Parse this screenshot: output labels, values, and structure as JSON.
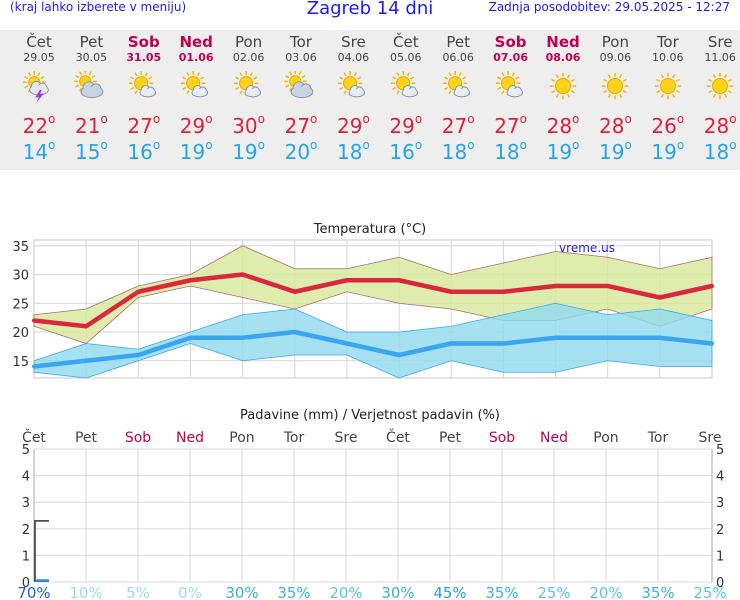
{
  "header": {
    "menu_hint": "(kraj lahko izberete v meniju)",
    "title": "Zagreb 14 dni",
    "updated": "Zadnja posodobitev: 29.05.2025 - 12:27"
  },
  "days": [
    {
      "name": "Čet",
      "date": "29.05",
      "weekend": false,
      "icon": "sun-cloud-thunder-icon",
      "max": "22",
      "min": "14"
    },
    {
      "name": "Pet",
      "date": "30.05",
      "weekend": false,
      "icon": "sun-cloud-icon",
      "max": "21",
      "min": "15"
    },
    {
      "name": "Sob",
      "date": "31.05",
      "weekend": true,
      "icon": "sun-small-cloud-icon",
      "max": "27",
      "min": "16"
    },
    {
      "name": "Ned",
      "date": "01.06",
      "weekend": true,
      "icon": "sun-small-cloud-icon",
      "max": "29",
      "min": "19"
    },
    {
      "name": "Pon",
      "date": "02.06",
      "weekend": false,
      "icon": "sun-small-cloud-icon",
      "max": "30",
      "min": "19"
    },
    {
      "name": "Tor",
      "date": "03.06",
      "weekend": false,
      "icon": "sun-cloud-icon",
      "max": "27",
      "min": "20"
    },
    {
      "name": "Sre",
      "date": "04.06",
      "weekend": false,
      "icon": "sun-small-cloud-icon",
      "max": "29",
      "min": "18"
    },
    {
      "name": "Čet",
      "date": "05.06",
      "weekend": false,
      "icon": "sun-small-cloud-icon",
      "max": "29",
      "min": "16"
    },
    {
      "name": "Pet",
      "date": "06.06",
      "weekend": false,
      "icon": "sun-small-cloud-icon",
      "max": "27",
      "min": "18"
    },
    {
      "name": "Sob",
      "date": "07.06",
      "weekend": true,
      "icon": "sun-small-cloud-icon",
      "max": "27",
      "min": "18"
    },
    {
      "name": "Ned",
      "date": "08.06",
      "weekend": true,
      "icon": "sun-icon",
      "max": "28",
      "min": "19"
    },
    {
      "name": "Pon",
      "date": "09.06",
      "weekend": false,
      "icon": "sun-icon",
      "max": "28",
      "min": "19"
    },
    {
      "name": "Tor",
      "date": "10.06",
      "weekend": false,
      "icon": "sun-icon",
      "max": "26",
      "min": "19"
    },
    {
      "name": "Sre",
      "date": "11.06",
      "weekend": false,
      "icon": "sun-icon",
      "max": "28",
      "min": "18"
    }
  ],
  "degree_symbol": "o",
  "chart_data": [
    {
      "type": "line",
      "title": "Temperatura (°C)",
      "watermark": "vreme.us",
      "ylim": [
        12,
        36
      ],
      "yticks": [
        15,
        20,
        25,
        30,
        35
      ],
      "grid": true,
      "series": [
        {
          "name": "max",
          "color": "#d9283c",
          "values": [
            22,
            21,
            27,
            29,
            30,
            27,
            29,
            29,
            27,
            27,
            28,
            28,
            26,
            28
          ]
        },
        {
          "name": "min",
          "color": "#3aa6f0",
          "values": [
            14,
            15,
            16,
            19,
            19,
            20,
            18,
            16,
            18,
            18,
            19,
            19,
            19,
            18
          ]
        }
      ],
      "max_band_high": [
        23,
        24,
        28,
        30,
        35,
        31,
        31,
        33,
        30,
        32,
        34,
        33,
        31,
        33
      ],
      "max_band_low": [
        21,
        18,
        26,
        28,
        26,
        24,
        27,
        25,
        24,
        22,
        22,
        24,
        21,
        24
      ],
      "min_band_high": [
        15,
        18,
        17,
        20,
        23,
        24,
        20,
        20,
        21,
        23,
        25,
        23,
        24,
        22
      ],
      "min_band_low": [
        13,
        12,
        15,
        18,
        15,
        16,
        16,
        12,
        15,
        13,
        13,
        15,
        14,
        14
      ]
    },
    {
      "type": "bar",
      "title": "Padavine (mm) / Verjetnost padavin (%)",
      "categories": [
        "Čet",
        "Pet",
        "Sob",
        "Ned",
        "Pon",
        "Tor",
        "Sre",
        "Čet",
        "Pet",
        "Sob",
        "Ned",
        "Pon",
        "Tor",
        "Sre"
      ],
      "weekend": [
        false,
        false,
        true,
        true,
        false,
        false,
        false,
        false,
        false,
        true,
        true,
        false,
        false,
        false
      ],
      "ylim": [
        0,
        5
      ],
      "yticks": [
        0,
        1,
        2,
        3,
        4,
        5
      ],
      "precip_mm": [
        0.1,
        0,
        0,
        0,
        0,
        0,
        0,
        0,
        0,
        0,
        0,
        0,
        0,
        0
      ],
      "precip_range_high": [
        2.3,
        0,
        0,
        0,
        0,
        0,
        0,
        0,
        0,
        0,
        0,
        0,
        0,
        0
      ],
      "probability": [
        "70%",
        "10%",
        "5%",
        "0%",
        "30%",
        "35%",
        "20%",
        "30%",
        "45%",
        "35%",
        "25%",
        "20%",
        "35%",
        "25%"
      ],
      "probability_values": [
        70,
        10,
        5,
        0,
        30,
        35,
        20,
        30,
        45,
        35,
        25,
        20,
        35,
        25
      ]
    }
  ]
}
